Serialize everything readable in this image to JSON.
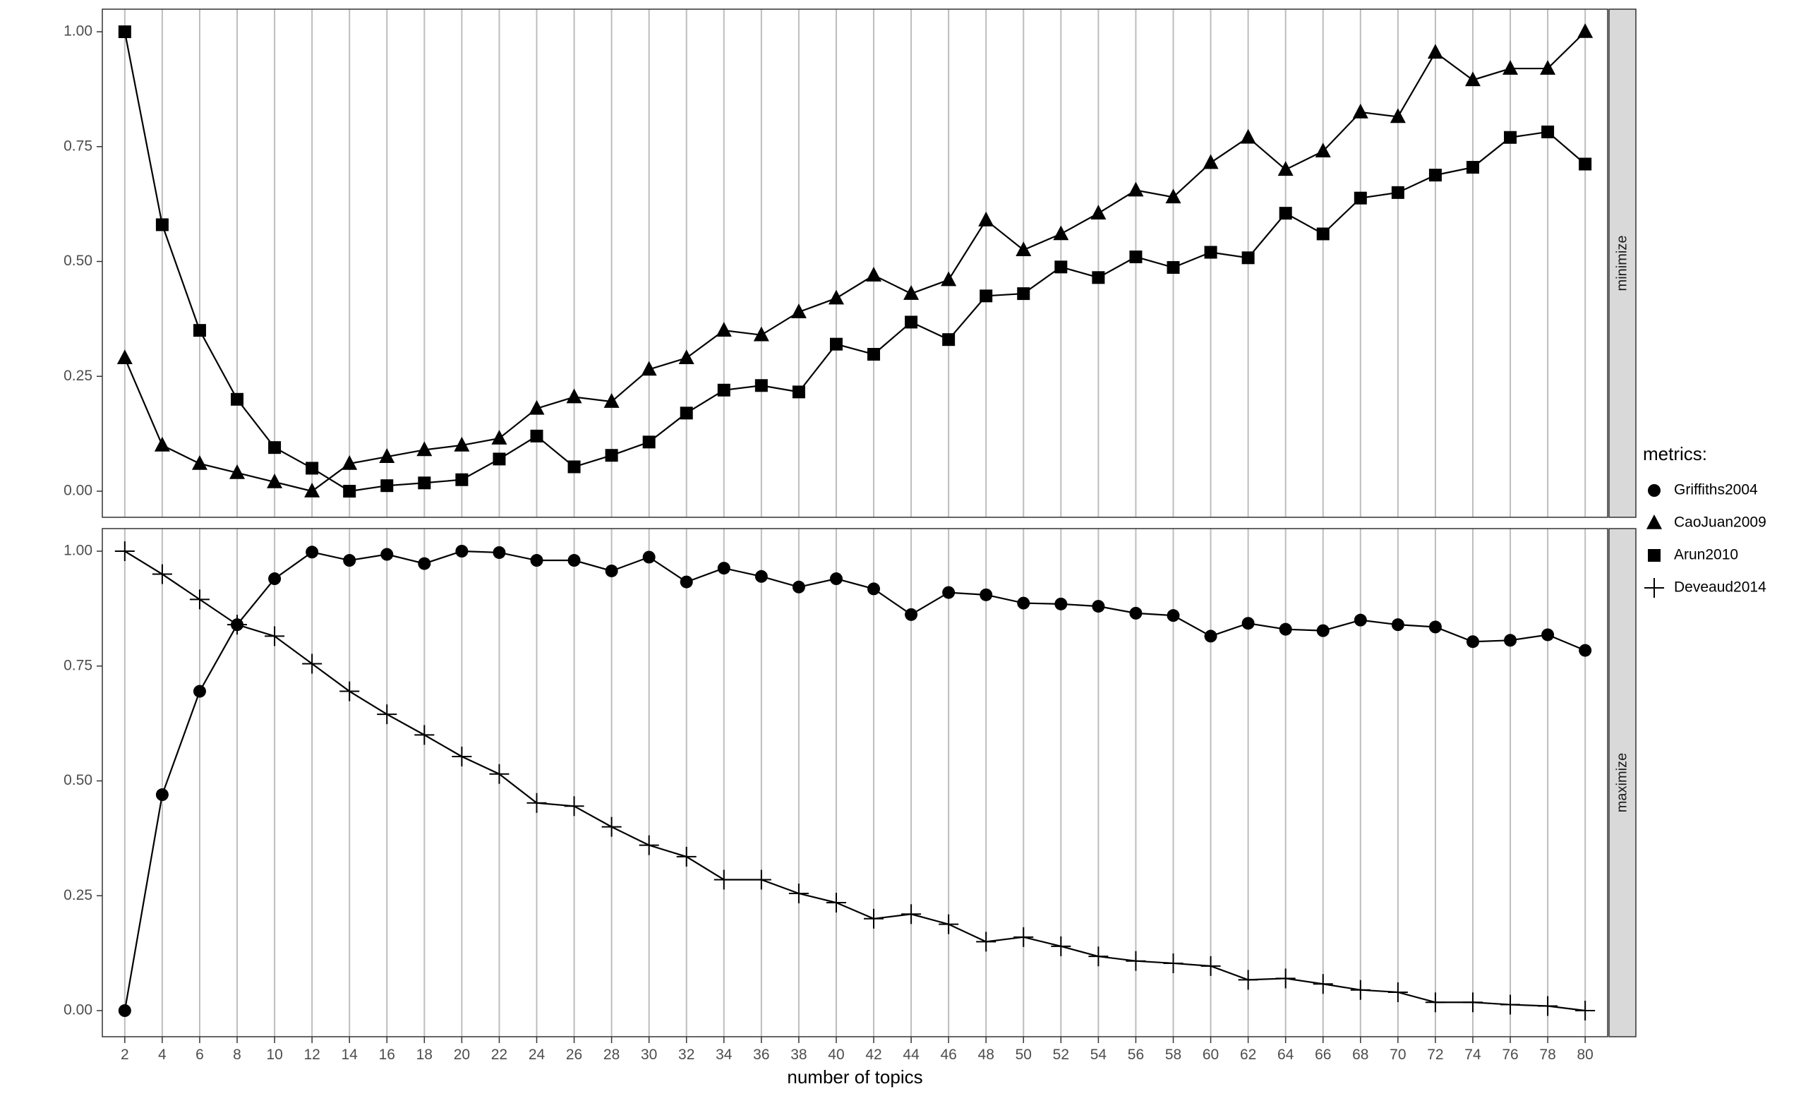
{
  "chart_data": [
    {
      "type": "line",
      "panel": "minimize",
      "strip_label": "minimize",
      "x": [
        2,
        4,
        6,
        8,
        10,
        12,
        14,
        16,
        18,
        20,
        22,
        24,
        26,
        28,
        30,
        32,
        34,
        36,
        38,
        40,
        42,
        44,
        46,
        48,
        50,
        52,
        54,
        56,
        58,
        60,
        62,
        64,
        66,
        68,
        70,
        72,
        74,
        76,
        78,
        80
      ],
      "ylim": [
        0,
        1
      ],
      "yticks": [
        "0.00",
        "0.25",
        "0.50",
        "0.75",
        "1.00"
      ],
      "grid": "vertical major lines only",
      "series": [
        {
          "name": "CaoJuan2009",
          "shape": "triangle",
          "values": [
            0.29,
            0.1,
            0.06,
            0.04,
            0.02,
            0.0,
            0.06,
            0.075,
            0.09,
            0.1,
            0.115,
            0.18,
            0.205,
            0.195,
            0.265,
            0.29,
            0.35,
            0.34,
            0.39,
            0.42,
            0.47,
            0.43,
            0.46,
            0.59,
            0.525,
            0.56,
            0.605,
            0.655,
            0.64,
            0.715,
            0.77,
            0.7,
            0.74,
            0.825,
            0.815,
            0.955,
            0.895,
            0.92,
            0.92,
            1.0
          ]
        },
        {
          "name": "Arun2010",
          "shape": "square",
          "values": [
            1.0,
            0.58,
            0.35,
            0.2,
            0.095,
            0.05,
            0.0,
            0.012,
            0.018,
            0.025,
            0.07,
            0.12,
            0.053,
            0.078,
            0.107,
            0.17,
            0.22,
            0.23,
            0.216,
            0.32,
            0.298,
            0.368,
            0.33,
            0.425,
            0.43,
            0.488,
            0.465,
            0.51,
            0.487,
            0.52,
            0.508,
            0.605,
            0.56,
            0.638,
            0.65,
            0.688,
            0.705,
            0.77,
            0.782,
            0.712
          ]
        }
      ]
    },
    {
      "type": "line",
      "panel": "maximize",
      "strip_label": "maximize",
      "x": [
        2,
        4,
        6,
        8,
        10,
        12,
        14,
        16,
        18,
        20,
        22,
        24,
        26,
        28,
        30,
        32,
        34,
        36,
        38,
        40,
        42,
        44,
        46,
        48,
        50,
        52,
        54,
        56,
        58,
        60,
        62,
        64,
        66,
        68,
        70,
        72,
        74,
        76,
        78,
        80
      ],
      "ylim": [
        0,
        1
      ],
      "yticks": [
        "0.00",
        "0.25",
        "0.50",
        "0.75",
        "1.00"
      ],
      "grid": "vertical major lines only",
      "series": [
        {
          "name": "Griffiths2004",
          "shape": "circle",
          "values": [
            0.0,
            0.47,
            0.695,
            0.84,
            0.94,
            0.998,
            0.98,
            0.993,
            0.973,
            1.0,
            0.997,
            0.98,
            0.98,
            0.957,
            0.987,
            0.933,
            0.963,
            0.945,
            0.922,
            0.94,
            0.918,
            0.862,
            0.91,
            0.905,
            0.887,
            0.885,
            0.88,
            0.865,
            0.86,
            0.815,
            0.843,
            0.83,
            0.827,
            0.85,
            0.84,
            0.835,
            0.803,
            0.806,
            0.818,
            0.784
          ]
        },
        {
          "name": "Deveaud2014",
          "shape": "plus",
          "values": [
            1.0,
            0.95,
            0.895,
            0.84,
            0.815,
            0.755,
            0.695,
            0.645,
            0.6,
            0.553,
            0.515,
            0.452,
            0.445,
            0.4,
            0.36,
            0.335,
            0.285,
            0.285,
            0.255,
            0.235,
            0.2,
            0.21,
            0.188,
            0.15,
            0.16,
            0.14,
            0.118,
            0.108,
            0.103,
            0.097,
            0.067,
            0.07,
            0.058,
            0.045,
            0.04,
            0.018,
            0.018,
            0.013,
            0.01,
            0.0
          ]
        }
      ]
    }
  ],
  "x_axis": {
    "title": "number of topics",
    "tick_labels": [
      "2",
      "4",
      "6",
      "8",
      "10",
      "12",
      "14",
      "16",
      "18",
      "20",
      "22",
      "24",
      "26",
      "28",
      "30",
      "32",
      "34",
      "36",
      "38",
      "40",
      "42",
      "44",
      "46",
      "48",
      "50",
      "52",
      "54",
      "56",
      "58",
      "60",
      "62",
      "64",
      "66",
      "68",
      "70",
      "72",
      "74",
      "76",
      "78",
      "80"
    ]
  },
  "legend": {
    "title": "metrics:",
    "placement": "right",
    "entries": [
      {
        "label": "Griffiths2004",
        "shape": "circle"
      },
      {
        "label": "CaoJuan2009",
        "shape": "triangle"
      },
      {
        "label": "Arun2010",
        "shape": "square"
      },
      {
        "label": "Deveaud2014",
        "shape": "plus"
      }
    ]
  },
  "colors": {
    "ink": "#000000",
    "grid": "#bdbdbd",
    "panel_border": "#333333",
    "strip_fill": "#d9d9d9",
    "tick_text": "#4d4d4d"
  }
}
